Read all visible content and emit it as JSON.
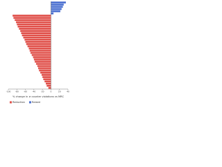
{
  "chart_data": {
    "type": "barh",
    "xlabel": "% change in ≥ counter violations vs MRC",
    "categories": [
      null,
      null,
      null,
      null,
      null,
      null,
      null,
      null,
      null,
      null,
      null,
      null,
      null,
      null,
      null,
      null,
      null,
      null,
      null,
      null,
      null,
      null,
      null,
      null,
      null,
      null,
      null,
      null,
      null,
      null,
      null,
      null,
      null,
      null,
      null,
      null,
      null,
      null,
      null,
      null
    ],
    "series": [
      {
        "name": "Raised",
        "color": "#4a6fd0",
        "values": [
          35,
          30,
          28,
          25,
          22,
          6,
          null,
          null,
          null,
          null,
          null,
          null,
          null,
          null,
          null,
          null,
          null,
          null,
          null,
          null,
          null,
          null,
          null,
          null,
          null,
          null,
          null,
          null,
          null,
          null,
          null,
          null,
          null,
          null,
          null,
          null,
          null,
          null,
          null,
          null
        ]
      },
      {
        "name": "Reduction",
        "color": "#e0504a",
        "values": [
          null,
          null,
          null,
          null,
          null,
          null,
          -90,
          -88,
          -85,
          -82,
          -80,
          -78,
          -75,
          -72,
          -70,
          -68,
          -65,
          -62,
          -60,
          -58,
          -55,
          -52,
          -50,
          -48,
          -45,
          -42,
          -40,
          -38,
          -35,
          -32,
          -30,
          -28,
          -25,
          -22,
          -20,
          -18,
          -15,
          -12,
          -10,
          -6
        ]
      }
    ],
    "xlim": [
      -100,
      40
    ],
    "xticks": [
      -100,
      -80,
      -60,
      -40,
      -20,
      0,
      20,
      40
    ]
  }
}
